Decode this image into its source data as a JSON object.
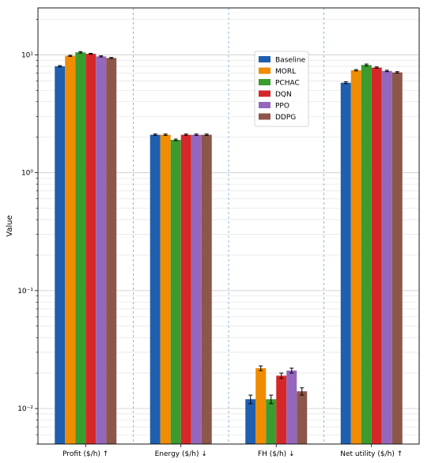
{
  "chart_data": {
    "type": "bar",
    "title": "",
    "xlabel": "",
    "ylabel": "Value",
    "yscale": "log",
    "ylim": [
      0.005,
      25
    ],
    "grid": true,
    "legend_position": "top-center",
    "categories": [
      "Profit ($/h) ↑",
      "Energy ($/h) ↓",
      "FH ($/h) ↓",
      "Net utility ($/h) ↑"
    ],
    "y_tick_labels": [
      "10⁻²",
      "10⁻¹",
      "10⁰",
      "10¹"
    ],
    "series": [
      {
        "name": "Baseline",
        "color": "#1f5fb0",
        "values": [
          8.0,
          2.1,
          0.012,
          5.8
        ],
        "errors": [
          0.1,
          0.03,
          0.001,
          0.1
        ]
      },
      {
        "name": "MORL",
        "color": "#f08c00",
        "values": [
          9.8,
          2.1,
          0.022,
          7.4
        ],
        "errors": [
          0.1,
          0.03,
          0.001,
          0.1
        ]
      },
      {
        "name": "PCHAC",
        "color": "#3a9c2f",
        "values": [
          10.5,
          1.9,
          0.012,
          8.2
        ],
        "errors": [
          0.15,
          0.03,
          0.001,
          0.15
        ]
      },
      {
        "name": "DQN",
        "color": "#d62728",
        "values": [
          10.2,
          2.1,
          0.019,
          7.8
        ],
        "errors": [
          0.1,
          0.03,
          0.001,
          0.1
        ]
      },
      {
        "name": "PPO",
        "color": "#9467bd",
        "values": [
          9.7,
          2.1,
          0.021,
          7.3
        ],
        "errors": [
          0.1,
          0.03,
          0.001,
          0.1
        ]
      },
      {
        "name": "DDPG",
        "color": "#8c564b",
        "values": [
          9.4,
          2.1,
          0.014,
          7.1
        ],
        "errors": [
          0.1,
          0.03,
          0.001,
          0.1
        ]
      }
    ]
  }
}
